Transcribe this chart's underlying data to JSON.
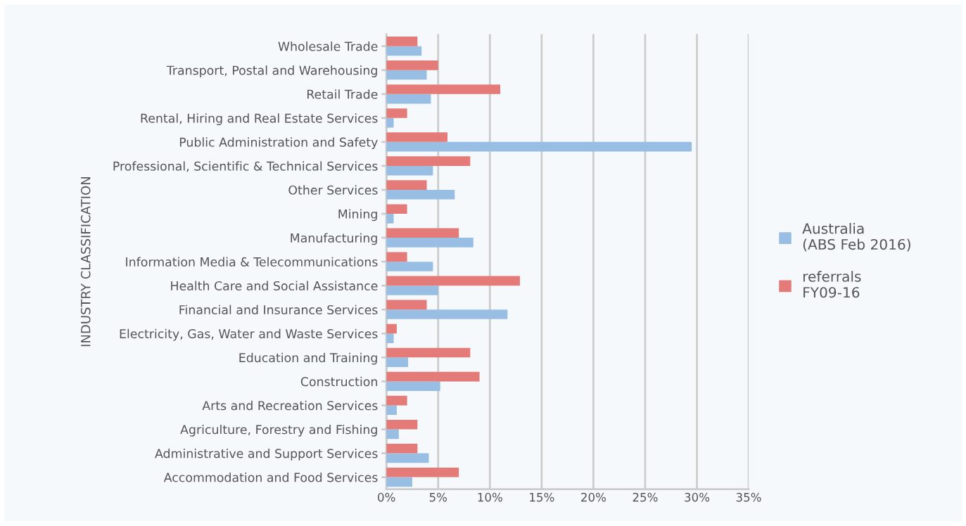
{
  "chart_data": {
    "type": "bar",
    "orientation": "horizontal",
    "ylabel": "INDUSTRY CLASSIFICATION",
    "categories": [
      "Wholesale Trade",
      "Transport, Postal and Warehousing",
      "Retail Trade",
      "Rental, Hiring and Real Estate Services",
      "Public Administration and Safety",
      "Professional, Scientific & Technical Services",
      "Other Services",
      "Mining",
      "Manufacturing",
      "Information Media & Telecommunications",
      "Health Care and Social Assistance",
      "Financial and Insurance Services",
      "Electricity, Gas, Water and Waste Services",
      "Education and Training",
      "Construction",
      "Arts and Recreation Services",
      "Agriculture, Forestry and Fishing",
      "Administrative and Support Services",
      "Accommodation and Food Services"
    ],
    "series": [
      {
        "name": "Australia\n(ABS Feb 2016)",
        "color": "#99bee3",
        "values": [
          3.4,
          3.9,
          4.3,
          0.7,
          29.5,
          4.5,
          6.6,
          0.7,
          8.4,
          4.5,
          5,
          11.7,
          0.7,
          2.1,
          5.2,
          1,
          1.2,
          4.1,
          2.5
        ]
      },
      {
        "name": "referrals\nFY09-16",
        "color": "#e47b79",
        "values": [
          3,
          5,
          11,
          2,
          5.9,
          8.1,
          3.9,
          2,
          7,
          2,
          12.9,
          3.9,
          1,
          8.1,
          9,
          2,
          3,
          3,
          7
        ]
      }
    ],
    "xlim": [
      0,
      35
    ],
    "xticks": [
      {
        "value": 0,
        "label": "0%"
      },
      {
        "value": 5,
        "label": "5%"
      },
      {
        "value": 10,
        "label": "10%"
      },
      {
        "value": 15,
        "label": "15%"
      },
      {
        "value": 20,
        "label": "20%"
      },
      {
        "value": 25,
        "label": "25%"
      },
      {
        "value": 30,
        "label": "30%"
      },
      {
        "value": 35,
        "label": "35%"
      }
    ],
    "grid": "x",
    "legend": "right"
  }
}
